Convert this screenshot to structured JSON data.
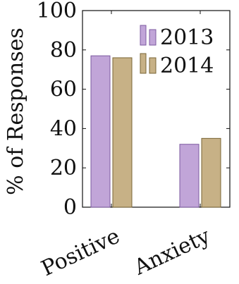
{
  "chart_data": {
    "type": "bar",
    "categories": [
      "Positive",
      "Anxiety"
    ],
    "series": [
      {
        "name": "2013",
        "values": [
          77,
          32
        ],
        "fill": "#c1a5d8",
        "stroke": "#7c5aa0"
      },
      {
        "name": "2014",
        "values": [
          76,
          35
        ],
        "fill": "#c7b186",
        "stroke": "#7a6535"
      }
    ],
    "title": "",
    "xlabel": "",
    "ylabel": "% of Responses",
    "ylim": [
      0,
      100
    ],
    "yticks": [
      "0",
      "20",
      "40",
      "60",
      "80",
      "100"
    ],
    "grid": false,
    "legend_position": "top-right"
  }
}
